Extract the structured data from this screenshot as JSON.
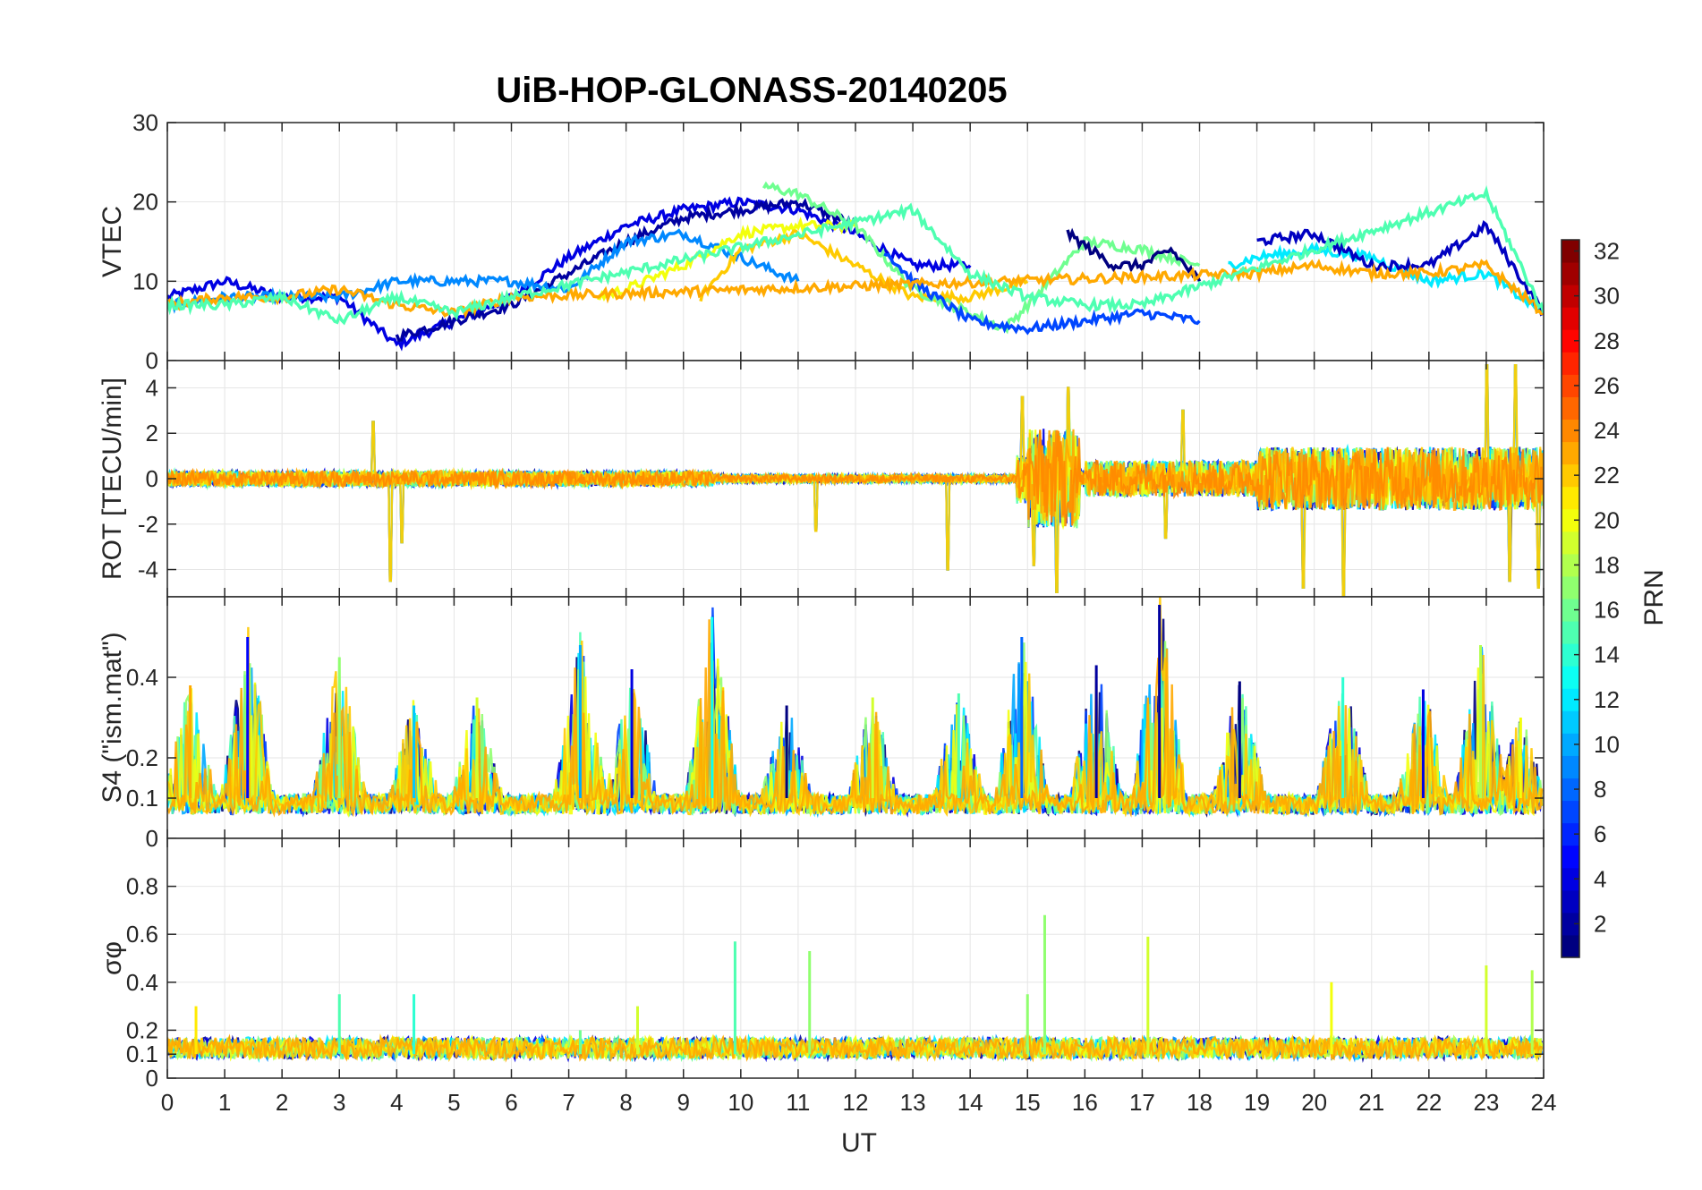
{
  "chart_data": {
    "type": "line",
    "title": "UiB-HOP-GLONASS-20140205",
    "xlabel": "UT",
    "xlim": [
      0,
      24
    ],
    "xticks": [
      "0",
      "1",
      "2",
      "3",
      "4",
      "5",
      "6",
      "7",
      "8",
      "9",
      "10",
      "11",
      "12",
      "13",
      "14",
      "15",
      "16",
      "17",
      "18",
      "19",
      "20",
      "21",
      "22",
      "23",
      "24"
    ],
    "colorbar": {
      "label": "PRN",
      "range": [
        1,
        32
      ],
      "ticks": [
        "2",
        "4",
        "6",
        "8",
        "10",
        "12",
        "14",
        "16",
        "18",
        "20",
        "22",
        "24",
        "26",
        "28",
        "30",
        "32"
      ],
      "colormap": "jet"
    },
    "panels": [
      {
        "id": "vtec",
        "ylabel": "VTEC",
        "ylim": [
          0,
          30
        ],
        "yticks": [
          0,
          10,
          20,
          30
        ],
        "ytick_labels": [
          "0",
          "10",
          "20",
          "30"
        ],
        "series": [
          {
            "prn": 4,
            "points": [
              [
                0,
                8
              ],
              [
                1,
                10
              ],
              [
                2,
                8
              ],
              [
                3,
                8
              ],
              [
                4,
                2
              ],
              [
                5,
                5
              ],
              [
                6,
                8
              ],
              [
                7,
                13
              ],
              [
                8,
                17
              ],
              [
                9,
                19
              ],
              [
                10,
                20
              ],
              [
                11,
                19
              ],
              [
                12,
                16
              ],
              [
                13,
                12
              ],
              [
                14,
                12
              ]
            ]
          },
          {
            "prn": 2,
            "points": [
              [
                4,
                3
              ],
              [
                5,
                5
              ],
              [
                6,
                7
              ],
              [
                7,
                11
              ],
              [
                8,
                15
              ],
              [
                9,
                18
              ],
              [
                10,
                19
              ],
              [
                11,
                20
              ],
              [
                12,
                17
              ]
            ]
          },
          {
            "prn": 9,
            "points": [
              [
                0,
                7
              ],
              [
                1,
                8
              ],
              [
                2,
                8
              ],
              [
                3,
                8
              ],
              [
                4,
                10
              ],
              [
                5,
                10
              ],
              [
                6,
                10
              ],
              [
                7,
                9
              ],
              [
                8,
                15
              ],
              [
                9,
                16
              ],
              [
                10,
                13
              ],
              [
                11,
                10
              ]
            ]
          },
          {
            "prn": 20,
            "points": [
              [
                7.5,
                8
              ],
              [
                8,
                9
              ],
              [
                9,
                12
              ],
              [
                10,
                16
              ],
              [
                11,
                17
              ],
              [
                12,
                17
              ]
            ]
          },
          {
            "prn": 22,
            "points": [
              [
                9.3,
                8
              ],
              [
                10,
                14
              ],
              [
                11,
                16
              ],
              [
                12,
                12
              ],
              [
                13,
                8
              ],
              [
                14,
                8
              ],
              [
                15,
                10
              ]
            ]
          },
          {
            "prn": 16,
            "points": [
              [
                10.4,
                22
              ],
              [
                11,
                21
              ],
              [
                12,
                17
              ],
              [
                13,
                9
              ],
              [
                14,
                6
              ],
              [
                14.6,
                4
              ],
              [
                15,
                7
              ],
              [
                16,
                15
              ],
              [
                17,
                14
              ],
              [
                18,
                12
              ]
            ]
          },
          {
            "prn": 7,
            "points": [
              [
                12.5,
                14
              ],
              [
                13,
                10
              ],
              [
                14,
                5
              ],
              [
                15,
                4
              ],
              [
                16,
                5
              ],
              [
                17,
                6
              ],
              [
                18,
                5
              ]
            ]
          },
          {
            "prn": 1,
            "points": [
              [
                15.7,
                16
              ],
              [
                16.5,
                12
              ],
              [
                17,
                12
              ],
              [
                17.5,
                14
              ],
              [
                18,
                10
              ]
            ]
          },
          {
            "prn": 12,
            "points": [
              [
                18.5,
                12
              ],
              [
                19,
                13
              ],
              [
                20,
                14
              ],
              [
                21,
                13
              ],
              [
                22,
                10
              ],
              [
                23,
                11
              ],
              [
                24,
                6
              ]
            ]
          },
          {
            "prn": 3,
            "points": [
              [
                19,
                15
              ],
              [
                20,
                16
              ],
              [
                21,
                12
              ],
              [
                22,
                12
              ],
              [
                23,
                17
              ],
              [
                24,
                6
              ]
            ]
          },
          {
            "prn": 23,
            "points": [
              [
                0,
                7
              ],
              [
                1,
                8
              ],
              [
                2,
                8
              ],
              [
                3,
                9
              ],
              [
                4,
                7
              ],
              [
                5,
                6
              ],
              [
                6,
                8
              ],
              [
                19,
                11
              ],
              [
                20,
                12
              ],
              [
                21,
                11
              ],
              [
                22,
                11
              ],
              [
                23,
                12
              ],
              [
                24,
                6
              ]
            ]
          },
          {
            "prn": 15,
            "points": [
              [
                0,
                7
              ],
              [
                1,
                7
              ],
              [
                2,
                8
              ],
              [
                3,
                5
              ],
              [
                4,
                8
              ],
              [
                5,
                6
              ],
              [
                6,
                8
              ],
              [
                13,
                19
              ],
              [
                14,
                11
              ],
              [
                15,
                8
              ],
              [
                16,
                7
              ],
              [
                17,
                7
              ],
              [
                23,
                21
              ],
              [
                24,
                6
              ]
            ]
          }
        ]
      },
      {
        "id": "rot",
        "ylabel": "ROT [TECU/min]",
        "ylim": [
          -5.2,
          5.2
        ],
        "yticks": [
          -4,
          -2,
          0,
          2,
          4
        ],
        "ytick_labels": [
          "-4",
          "-2",
          "0",
          "2",
          "4"
        ],
        "spikes": [
          [
            3.6,
            2.5
          ],
          [
            3.9,
            -4.5
          ],
          [
            4.1,
            -2.8
          ],
          [
            11.3,
            -2.3
          ],
          [
            13.6,
            -4
          ],
          [
            14.9,
            3.6
          ],
          [
            15.1,
            -3.8
          ],
          [
            15.5,
            -5
          ],
          [
            15.7,
            4
          ],
          [
            17.4,
            -2.6
          ],
          [
            17.7,
            3
          ],
          [
            19.8,
            -4.8
          ],
          [
            20.5,
            -5.2
          ],
          [
            23.0,
            5
          ],
          [
            23.4,
            -4.5
          ],
          [
            23.5,
            5
          ],
          [
            23.9,
            -4.8
          ]
        ]
      },
      {
        "id": "s4",
        "ylabel": "S4 (\"ism.mat\")",
        "ylim": [
          0,
          0.6
        ],
        "yticks": [
          0,
          0.1,
          0.2,
          0.4
        ],
        "ytick_labels": [
          "0",
          "0.1",
          "0.2",
          "0.4"
        ],
        "peaks": [
          [
            0.4,
            0.38
          ],
          [
            1.4,
            0.5
          ],
          [
            3.0,
            0.45
          ],
          [
            4.3,
            0.33
          ],
          [
            5.4,
            0.35
          ],
          [
            7.2,
            0.48
          ],
          [
            8.1,
            0.42
          ],
          [
            9.5,
            0.55
          ],
          [
            10.8,
            0.33
          ],
          [
            12.3,
            0.35
          ],
          [
            13.8,
            0.36
          ],
          [
            14.9,
            0.5
          ],
          [
            16.2,
            0.43
          ],
          [
            17.3,
            0.58
          ],
          [
            18.7,
            0.39
          ],
          [
            20.5,
            0.4
          ],
          [
            21.9,
            0.37
          ],
          [
            22.9,
            0.48
          ],
          [
            23.6,
            0.3
          ]
        ]
      },
      {
        "id": "sigphi",
        "ylabel": "σφ",
        "ylim": [
          0,
          1
        ],
        "yticks": [
          0,
          0.1,
          0.2,
          0.4,
          0.6,
          0.8
        ],
        "ytick_labels": [
          "0",
          "0.1",
          "0.2",
          "0.4",
          "0.6",
          "0.8"
        ],
        "peaks": [
          [
            0.5,
            0.3
          ],
          [
            3.0,
            0.35
          ],
          [
            4.3,
            0.35
          ],
          [
            7.2,
            0.2
          ],
          [
            8.2,
            0.3
          ],
          [
            9.9,
            0.57
          ],
          [
            11.2,
            0.53
          ],
          [
            15.0,
            0.35
          ],
          [
            15.3,
            0.68
          ],
          [
            17.1,
            0.59
          ],
          [
            20.3,
            0.4
          ],
          [
            23.0,
            0.47
          ],
          [
            23.8,
            0.45
          ]
        ]
      }
    ]
  }
}
